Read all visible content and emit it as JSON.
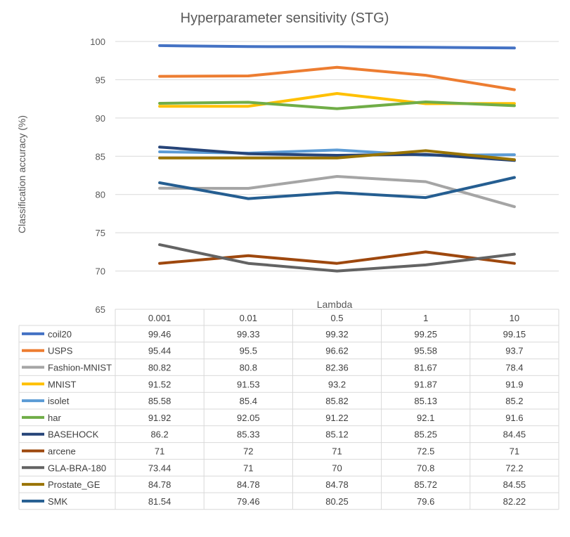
{
  "chart_data": {
    "type": "line",
    "title": "Hyperparameter sensitivity (STG)",
    "xlabel": "Lambda",
    "ylabel": "Classification accuracy (%)",
    "ylim": [
      65,
      100
    ],
    "yticks": [
      100,
      95,
      90,
      85,
      80,
      75,
      70,
      65
    ],
    "grid": true,
    "legend": "data table below chart",
    "categories": [
      "0.001",
      "0.01",
      "0.5",
      "1",
      "10"
    ],
    "series": [
      {
        "name": "coil20",
        "color": "#4472C4",
        "values": [
          99.46,
          99.33,
          99.32,
          99.25,
          99.15
        ]
      },
      {
        "name": "USPS",
        "color": "#ED7D31",
        "values": [
          95.44,
          95.5,
          96.62,
          95.58,
          93.7
        ]
      },
      {
        "name": "Fashion-MNIST",
        "color": "#A5A5A5",
        "values": [
          80.82,
          80.8,
          82.36,
          81.67,
          78.4
        ]
      },
      {
        "name": "MNIST",
        "color": "#FFC000",
        "values": [
          91.52,
          91.53,
          93.2,
          91.87,
          91.9
        ]
      },
      {
        "name": "isolet",
        "color": "#5B9BD5",
        "values": [
          85.58,
          85.4,
          85.82,
          85.13,
          85.2
        ]
      },
      {
        "name": "har",
        "color": "#70AD47",
        "values": [
          91.92,
          92.05,
          91.22,
          92.1,
          91.6
        ]
      },
      {
        "name": "BASEHOCK",
        "color": "#264478",
        "values": [
          86.2,
          85.33,
          85.12,
          85.25,
          84.45
        ]
      },
      {
        "name": "arcene",
        "color": "#9E480E",
        "values": [
          71,
          72,
          71,
          72.5,
          71
        ]
      },
      {
        "name": "GLA-BRA-180",
        "color": "#636363",
        "values": [
          73.44,
          71,
          70,
          70.8,
          72.2
        ]
      },
      {
        "name": "Prostate_GE",
        "color": "#997300",
        "values": [
          84.78,
          84.78,
          84.78,
          85.72,
          84.55
        ]
      },
      {
        "name": "SMK",
        "color": "#255E91",
        "values": [
          81.54,
          79.46,
          80.25,
          79.6,
          82.22
        ]
      }
    ]
  }
}
